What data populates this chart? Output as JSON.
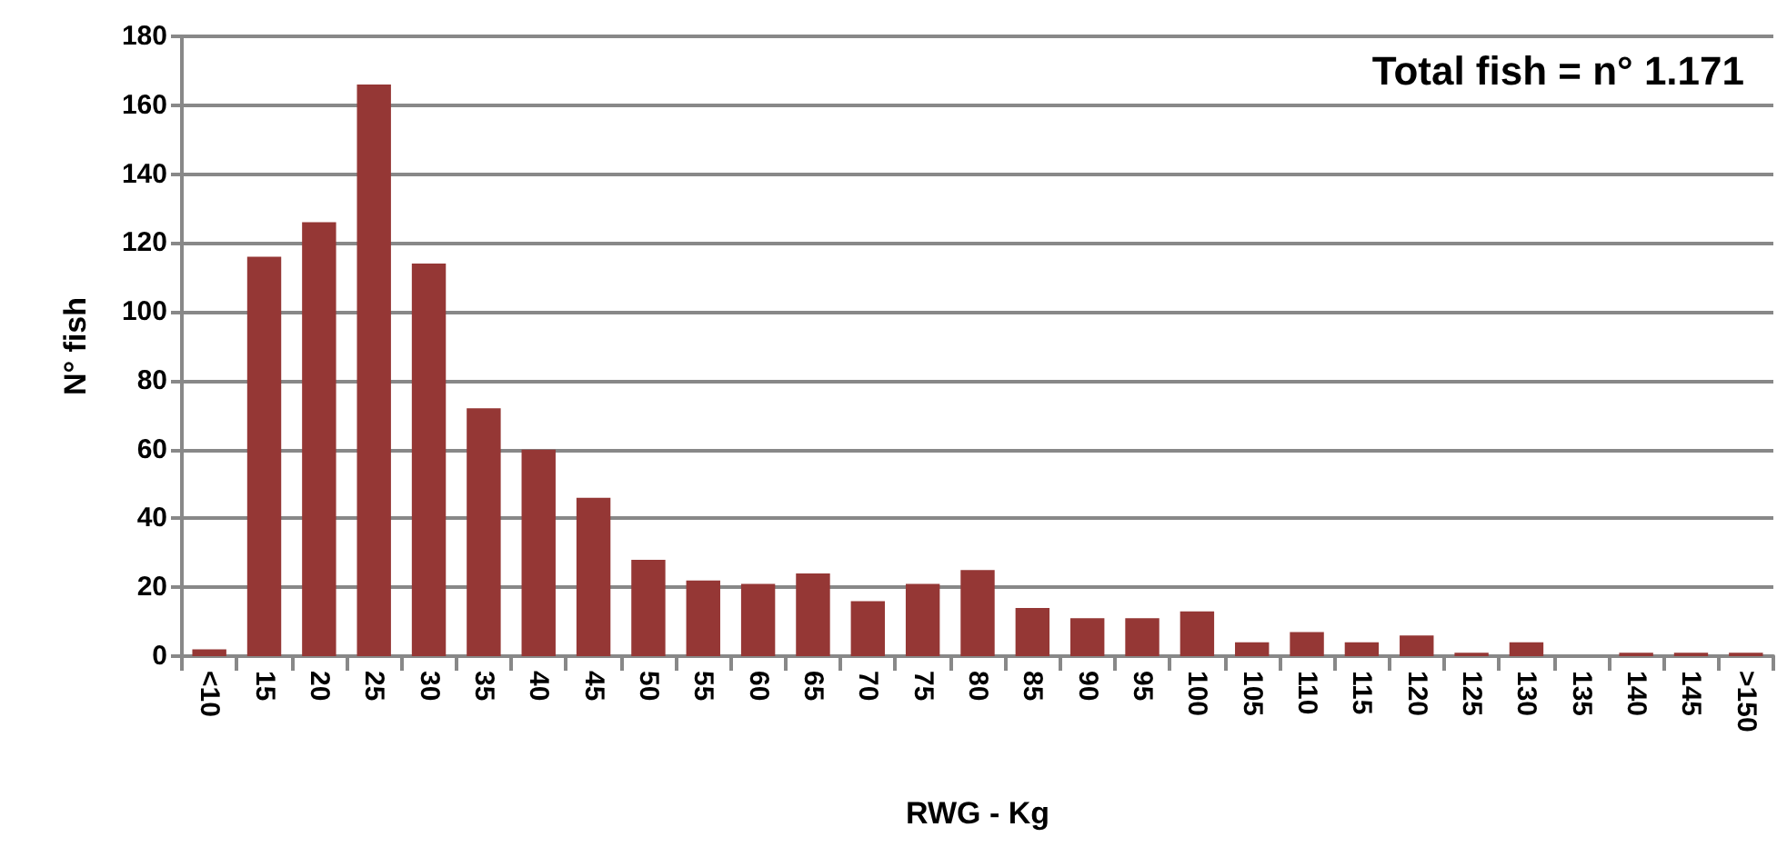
{
  "chart_data": {
    "type": "bar",
    "xlabel": "RWG - Kg",
    "ylabel": "N° fish",
    "annotations": [
      "Total fish = n° 1.171"
    ],
    "categories": [
      "<10",
      "15",
      "20",
      "25",
      "30",
      "35",
      "40",
      "45",
      "50",
      "55",
      "60",
      "65",
      "70",
      "75",
      "80",
      "85",
      "90",
      "95",
      "100",
      "105",
      "110",
      "115",
      "120",
      "125",
      "130",
      "135",
      "140",
      "145",
      ">150"
    ],
    "values": [
      2,
      116,
      126,
      166,
      114,
      72,
      60,
      46,
      28,
      22,
      21,
      24,
      16,
      21,
      25,
      14,
      11,
      11,
      13,
      4,
      7,
      4,
      6,
      1,
      4,
      0,
      1,
      1,
      1
    ],
    "color": "#953735",
    "ylim": [
      0,
      180
    ],
    "yticks": [
      0,
      20,
      40,
      60,
      80,
      100,
      120,
      140,
      160,
      180
    ],
    "grid": "y"
  }
}
